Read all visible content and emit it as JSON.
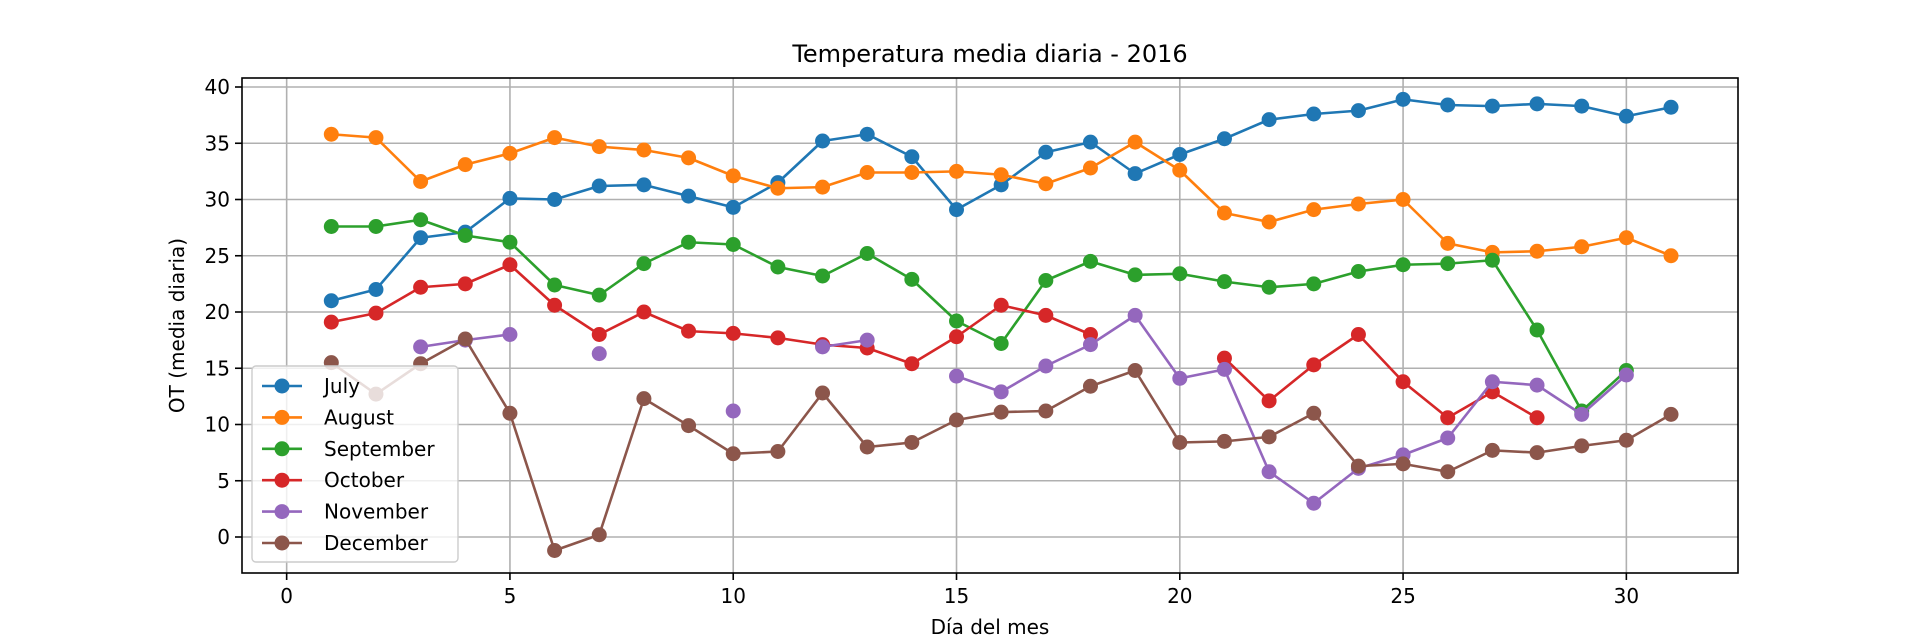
{
  "chart_data": {
    "type": "line",
    "title": "Temperatura media diaria - 2016",
    "xlabel": "Día del mes",
    "ylabel": "OT (media diaria)",
    "xlim": [
      -1,
      32.5
    ],
    "ylim": [
      -3.2,
      40.8
    ],
    "xticks": [
      0,
      5,
      10,
      15,
      20,
      25,
      30
    ],
    "yticks": [
      0,
      5,
      10,
      15,
      20,
      25,
      30,
      35,
      40
    ],
    "grid": true,
    "legend_position": "lower-left",
    "series": [
      {
        "name": "July",
        "color": "#1f77b4",
        "x": [
          1,
          2,
          3,
          4,
          5,
          6,
          7,
          8,
          9,
          10,
          11,
          12,
          13,
          14,
          15,
          16,
          17,
          18,
          19,
          20,
          21,
          22,
          23,
          24,
          25,
          26,
          27,
          28,
          29,
          30,
          31
        ],
        "y": [
          21.0,
          22.0,
          26.6,
          27.1,
          30.1,
          30.0,
          31.2,
          31.3,
          30.3,
          29.3,
          31.5,
          35.2,
          35.8,
          33.8,
          29.1,
          31.3,
          34.2,
          35.1,
          32.3,
          34.0,
          35.4,
          37.1,
          37.6,
          37.9,
          38.9,
          38.4,
          38.3,
          38.5,
          38.3,
          37.4,
          38.2
        ]
      },
      {
        "name": "August",
        "color": "#ff7f0e",
        "x": [
          1,
          2,
          3,
          4,
          5,
          6,
          7,
          8,
          9,
          10,
          11,
          12,
          13,
          14,
          15,
          16,
          17,
          18,
          19,
          20,
          21,
          22,
          23,
          24,
          25,
          26,
          27,
          28,
          29,
          30,
          31
        ],
        "y": [
          35.8,
          35.5,
          31.6,
          33.1,
          34.1,
          35.5,
          34.7,
          34.4,
          33.7,
          32.1,
          31.0,
          31.1,
          32.4,
          32.4,
          32.5,
          32.2,
          31.4,
          32.8,
          35.1,
          32.6,
          28.8,
          28.0,
          29.1,
          29.6,
          30.0,
          26.1,
          25.3,
          25.4,
          25.8,
          26.6,
          25.0
        ]
      },
      {
        "name": "September",
        "color": "#2ca02c",
        "x": [
          1,
          2,
          3,
          4,
          5,
          6,
          7,
          8,
          9,
          10,
          11,
          12,
          13,
          14,
          15,
          16,
          17,
          18,
          19,
          20,
          21,
          22,
          23,
          24,
          25,
          26,
          27,
          28,
          29,
          30
        ],
        "y": [
          27.6,
          27.6,
          28.2,
          26.8,
          26.2,
          22.4,
          21.5,
          24.3,
          26.2,
          26.0,
          24.0,
          23.2,
          25.2,
          22.9,
          19.2,
          17.2,
          22.8,
          24.5,
          23.3,
          23.4,
          22.7,
          22.2,
          22.5,
          23.6,
          24.2,
          24.3,
          24.6,
          18.4,
          11.2,
          14.8
        ]
      },
      {
        "name": "October",
        "color": "#d62728",
        "x": [
          1,
          2,
          3,
          4,
          5,
          6,
          7,
          8,
          9,
          10,
          11,
          12,
          13,
          14,
          15,
          16,
          17,
          18,
          19,
          20,
          21,
          22,
          23,
          24,
          25,
          26,
          27,
          28,
          29,
          30,
          31
        ],
        "y": [
          19.1,
          19.9,
          22.2,
          22.5,
          24.2,
          20.6,
          18.0,
          20.0,
          18.3,
          18.1,
          17.7,
          17.1,
          16.8,
          15.4,
          17.8,
          20.6,
          19.7,
          18.0,
          null,
          null,
          15.9,
          12.1,
          15.3,
          18.0,
          13.8,
          10.6,
          12.9,
          10.6,
          null,
          null,
          null
        ]
      },
      {
        "name": "November",
        "color": "#9467bd",
        "x": [
          1,
          2,
          3,
          4,
          5,
          6,
          7,
          8,
          9,
          10,
          11,
          12,
          13,
          14,
          15,
          16,
          17,
          18,
          19,
          20,
          21,
          22,
          23,
          24,
          25,
          26,
          27,
          28,
          29,
          30
        ],
        "y": [
          null,
          null,
          16.9,
          17.5,
          18.0,
          null,
          16.3,
          null,
          null,
          11.2,
          null,
          16.9,
          17.5,
          null,
          14.3,
          12.9,
          15.2,
          17.1,
          19.7,
          14.1,
          14.9,
          5.8,
          3.0,
          6.1,
          7.3,
          8.8,
          13.8,
          13.5,
          10.9,
          14.4
        ]
      },
      {
        "name": "December",
        "color": "#8c564b",
        "x": [
          1,
          2,
          3,
          4,
          5,
          6,
          7,
          8,
          9,
          10,
          11,
          12,
          13,
          14,
          15,
          16,
          17,
          18,
          19,
          20,
          21,
          22,
          23,
          24,
          25,
          26,
          27,
          28,
          29,
          30,
          31
        ],
        "y": [
          15.5,
          12.7,
          15.4,
          17.6,
          11.0,
          -1.2,
          0.2,
          12.3,
          9.9,
          7.4,
          7.6,
          12.8,
          8.0,
          8.4,
          10.4,
          11.1,
          11.2,
          13.4,
          14.8,
          8.4,
          8.5,
          8.9,
          11.0,
          6.3,
          6.5,
          5.8,
          7.7,
          7.5,
          8.1,
          8.6,
          10.9
        ]
      }
    ]
  }
}
